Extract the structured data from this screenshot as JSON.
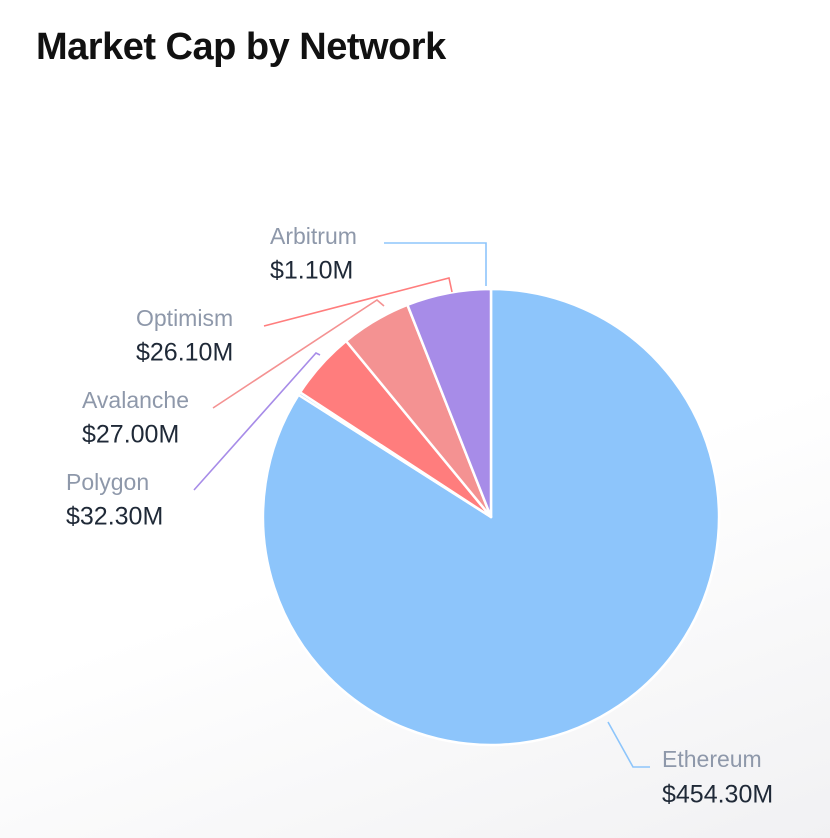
{
  "chart_data": {
    "type": "pie",
    "title": "Market Cap by Network",
    "start_angle_deg": 0,
    "direction": "clockwise",
    "categories": [
      "Ethereum",
      "Arbitrum",
      "Optimism",
      "Avalanche",
      "Polygon"
    ],
    "values": [
      454.3,
      1.1,
      26.1,
      27.0,
      32.3
    ],
    "value_labels": [
      "$454.30M",
      "$1.10M",
      "$26.10M",
      "$27.00M",
      "$32.30M"
    ],
    "colors": [
      "#8dc5fb",
      "#8dc5fb",
      "#ff7d7d",
      "#f49292",
      "#a78ce8"
    ]
  }
}
